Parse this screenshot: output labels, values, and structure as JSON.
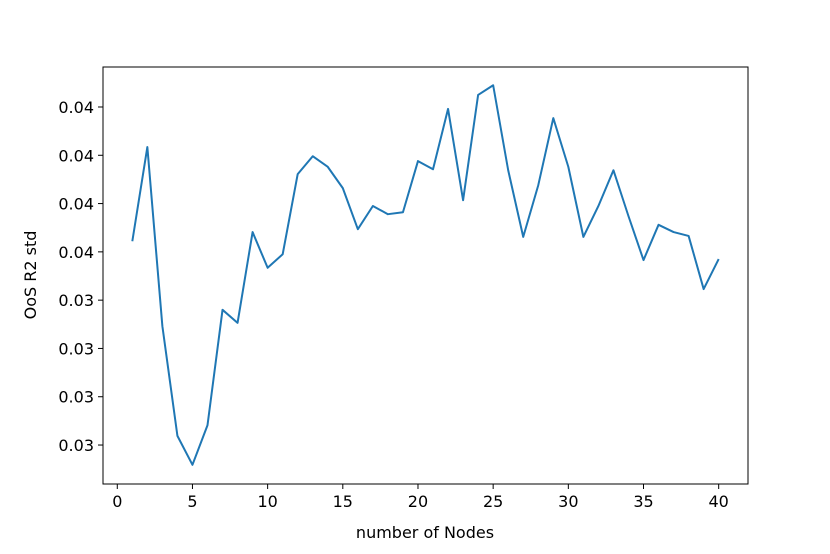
{
  "chart_data": {
    "type": "line",
    "xlabel": "number of Nodes",
    "ylabel": "OoS R2 std",
    "x": [
      1,
      2,
      3,
      4,
      5,
      6,
      7,
      8,
      9,
      10,
      11,
      12,
      13,
      14,
      15,
      16,
      17,
      18,
      19,
      20,
      21,
      22,
      23,
      24,
      25,
      26,
      27,
      28,
      29,
      30,
      31,
      32,
      33,
      34,
      35,
      36,
      37,
      38,
      39,
      40
    ],
    "series": [
      {
        "name": "OoS R2 std",
        "color": "#1f77b4",
        "values": [
          0.03522,
          0.03717,
          0.03346,
          0.03119,
          0.03059,
          0.03141,
          0.0338,
          0.03353,
          0.03541,
          0.03467,
          0.03495,
          0.03661,
          0.03698,
          0.03676,
          0.03632,
          0.03547,
          0.03595,
          0.03578,
          0.03582,
          0.03688,
          0.03671,
          0.03796,
          0.03607,
          0.03825,
          0.03845,
          0.03669,
          0.03531,
          0.03638,
          0.03777,
          0.03676,
          0.03531,
          0.03595,
          0.03669,
          0.03574,
          0.03483,
          0.03556,
          0.03541,
          0.03533,
          0.03423,
          0.03485
        ]
      }
    ],
    "xlim": [
      -0.95,
      41.95
    ],
    "xticks": [
      0,
      5,
      10,
      15,
      20,
      25,
      30,
      35,
      40
    ],
    "ylim": [
      0.030193,
      0.038828
    ],
    "yticks": [
      {
        "value": 0.031,
        "label": "0.03"
      },
      {
        "value": 0.032,
        "label": "0.03"
      },
      {
        "value": 0.033,
        "label": "0.03"
      },
      {
        "value": 0.034,
        "label": "0.03"
      },
      {
        "value": 0.035,
        "label": "0.04"
      },
      {
        "value": 0.036,
        "label": "0.04"
      },
      {
        "value": 0.037,
        "label": "0.04"
      },
      {
        "value": 0.038,
        "label": "0.04"
      }
    ],
    "grid": false
  }
}
